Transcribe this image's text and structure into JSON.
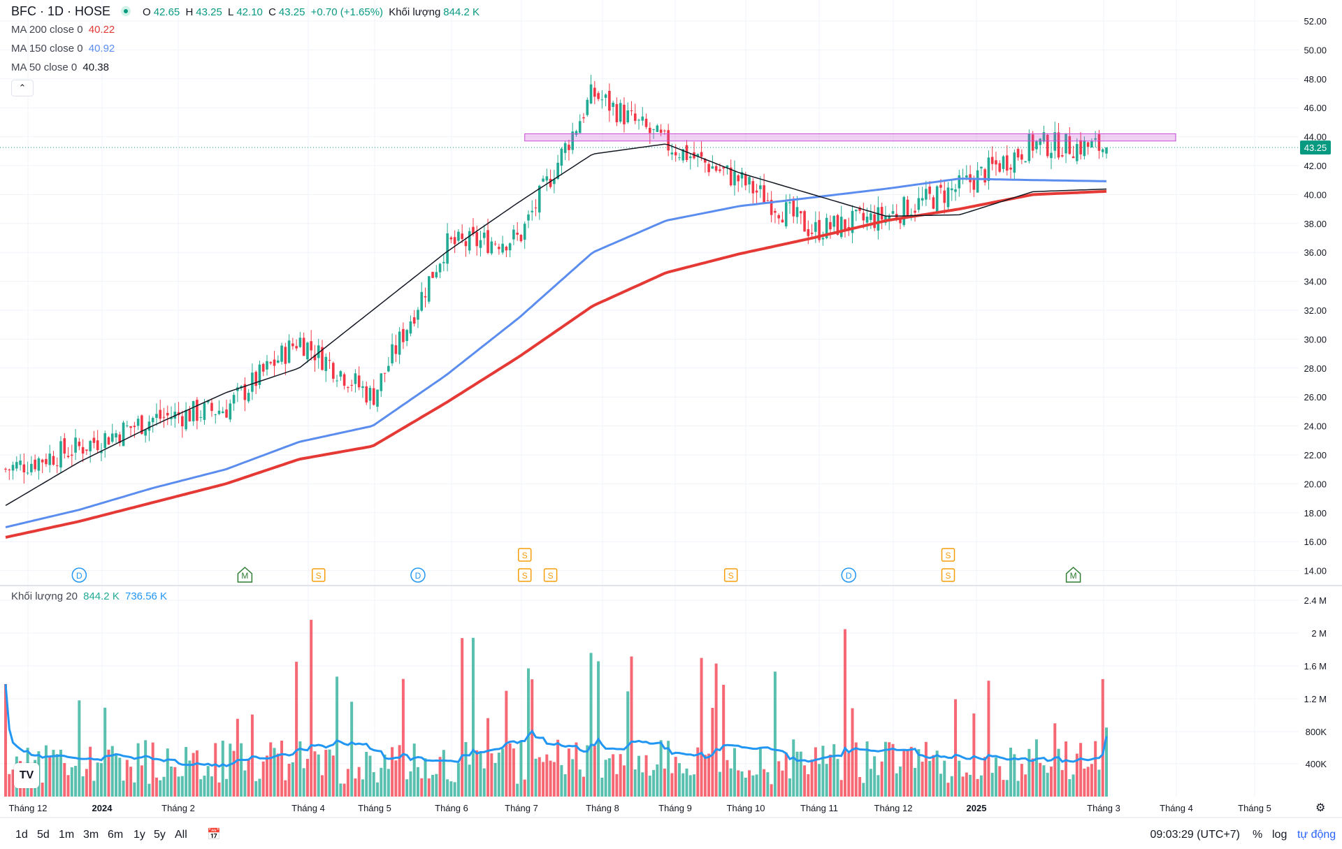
{
  "header": {
    "symbol": "BFC · 1D · HOSE",
    "open_key": "O",
    "open": "42.65",
    "high_key": "H",
    "high": "43.25",
    "low_key": "L",
    "low": "42.10",
    "close_key": "C",
    "close": "43.25",
    "change": "+0.70 (+1.65%)",
    "volume_key": "Khối lượng",
    "volume": "844.2 K"
  },
  "indicators": [
    {
      "label": "MA 200 close 0",
      "value": "40.22",
      "color": "#e53935"
    },
    {
      "label": "MA 150 close 0",
      "value": "40.92",
      "color": "#5b8def"
    },
    {
      "label": "MA 50 close 0",
      "value": "40.38",
      "color": "#131722"
    }
  ],
  "volume_legend": {
    "label": "Khối lượng 20",
    "v1": "844.2 K",
    "v2": "736.56 K"
  },
  "collapse_icon": "chevron-up-icon",
  "price_axis_ticks": [
    "52.00",
    "50.00",
    "48.00",
    "46.00",
    "44.00",
    "42.00",
    "40.00",
    "38.00",
    "36.00",
    "34.00",
    "32.00",
    "30.00",
    "28.00",
    "26.00",
    "24.00",
    "22.00",
    "20.00",
    "18.00",
    "16.00",
    "14.00"
  ],
  "last_price_label": "43.25",
  "volume_axis_ticks": [
    "2.4 M",
    "2 M",
    "1.6 M",
    "1.2 M",
    "800K",
    "400K"
  ],
  "time_axis_ticks": [
    "Tháng 12",
    "2024",
    "Tháng 2",
    "Tháng 4",
    "Tháng 5",
    "Tháng 6",
    "Tháng 7",
    "Tháng 8",
    "Tháng 9",
    "Tháng 10",
    "Tháng 11",
    "Tháng 12",
    "2025",
    "Tháng 3",
    "Tháng 4",
    "Tháng 5"
  ],
  "event_markers": [
    {
      "letter": "D",
      "bar": 20
    },
    {
      "letter": "M",
      "bar": 65
    },
    {
      "letter": "S",
      "bar": 85
    },
    {
      "letter": "D",
      "bar": 112
    },
    {
      "letter": "S",
      "bar": 141
    },
    {
      "letter": "S",
      "bar": 141,
      "stack": 1
    },
    {
      "letter": "S",
      "bar": 148
    },
    {
      "letter": "S",
      "bar": 197
    },
    {
      "letter": "D",
      "bar": 229
    },
    {
      "letter": "S",
      "bar": 256
    },
    {
      "letter": "S",
      "bar": 256,
      "stack": 1
    },
    {
      "letter": "M",
      "bar": 290
    }
  ],
  "range_buttons": [
    "1d",
    "5d",
    "1m",
    "3m",
    "6m",
    "1y",
    "5y",
    "All"
  ],
  "clock": "09:03:29 (UTC+7)",
  "options": {
    "percent": "%",
    "log": "log",
    "auto": "tự động"
  },
  "logo_text": "TV",
  "colors": {
    "up": "#22ab94",
    "down": "#f23645",
    "ma200": "#e53935",
    "ma150": "#5b8def",
    "ma50": "#131722",
    "vol_ma": "#2196f3",
    "resistance": "#c84bd4"
  },
  "chart_data": [
    {
      "type": "candlestick",
      "title": "BFC · 1D · HOSE",
      "ylim": [
        14,
        52
      ],
      "x": [
        "2023-12",
        "2024-01",
        "2024-02",
        "2024-03",
        "2024-04",
        "2024-05",
        "2024-06",
        "2024-07",
        "2024-08",
        "2024-09",
        "2024-10",
        "2024-11",
        "2024-12",
        "2025-01",
        "2025-02",
        "2025-03"
      ],
      "keypoints_close": [
        21.0,
        22.5,
        24.5,
        25.2,
        30.0,
        26.0,
        36.5,
        37.0,
        47.0,
        43.5,
        41.0,
        37.5,
        38.5,
        40.5,
        43.5,
        43.25
      ],
      "series": [
        {
          "name": "MA 200 close 0",
          "values": [
            16.3,
            17.4,
            18.7,
            20.0,
            21.7,
            22.6,
            25.6,
            28.8,
            32.3,
            34.6,
            35.9,
            37.0,
            38.2,
            39.0,
            40.0,
            40.22
          ]
        },
        {
          "name": "MA 150 close 0",
          "values": [
            17.0,
            18.2,
            19.7,
            21.0,
            22.9,
            24.0,
            27.5,
            31.5,
            36.0,
            38.2,
            39.2,
            39.8,
            40.4,
            41.1,
            41.0,
            40.92
          ]
        },
        {
          "name": "MA 50 close 0",
          "values": [
            18.5,
            21.5,
            24.0,
            26.3,
            28.0,
            32.0,
            36.0,
            39.5,
            42.8,
            43.5,
            41.5,
            40.0,
            38.5,
            38.6,
            40.2,
            40.38
          ]
        }
      ],
      "resistance_zone": [
        43.7,
        44.2
      ],
      "last_price": 43.25
    },
    {
      "type": "bar",
      "title": "Khối lượng 20",
      "ylim": [
        0,
        2400000
      ],
      "last_volume": 844200,
      "volume_ma20": 736560
    }
  ]
}
